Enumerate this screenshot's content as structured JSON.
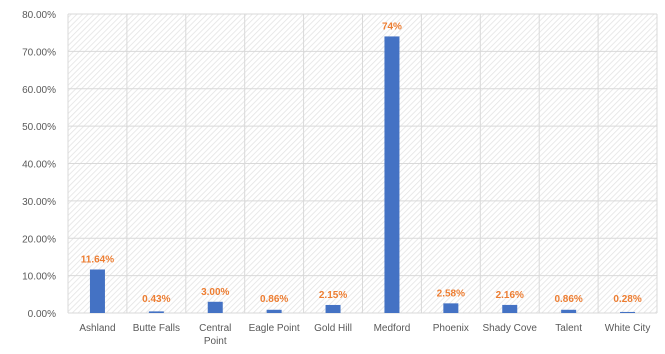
{
  "colors": {
    "bar": "#4472C4",
    "data_label": "#ED7D31",
    "grid": "#D9D9D9",
    "hatch": "#E4E4E4",
    "tick_text": "#595959"
  },
  "chart_data": {
    "type": "bar",
    "title": "",
    "xlabel": "",
    "ylabel": "",
    "categories": [
      [
        "Ashland"
      ],
      [
        "Butte Falls"
      ],
      [
        "Central",
        "Point"
      ],
      [
        "Eagle Point"
      ],
      [
        "Gold Hill"
      ],
      [
        "Medford"
      ],
      [
        "Phoenix"
      ],
      [
        "Shady Cove"
      ],
      [
        "Talent"
      ],
      [
        "White City"
      ]
    ],
    "values": [
      11.64,
      0.43,
      3.0,
      0.86,
      2.15,
      74.0,
      2.58,
      2.16,
      0.86,
      0.28
    ],
    "data_labels": [
      "11.64%",
      "0.43%",
      "3.00%",
      "0.86%",
      "2.15%",
      "74%",
      "2.58%",
      "2.16%",
      "0.86%",
      "0.28%"
    ],
    "ylim": [
      0,
      80
    ],
    "yticks": [
      {
        "value": 0,
        "label": "0.00%"
      },
      {
        "value": 10,
        "label": "10.00%"
      },
      {
        "value": 20,
        "label": "20.00%"
      },
      {
        "value": 30,
        "label": "30.00%"
      },
      {
        "value": 40,
        "label": "40.00%"
      },
      {
        "value": 50,
        "label": "50.00%"
      },
      {
        "value": 60,
        "label": "60.00%"
      },
      {
        "value": 70,
        "label": "70.00%"
      },
      {
        "value": 80,
        "label": "80.00%"
      }
    ],
    "grid": true,
    "legend": "none"
  }
}
